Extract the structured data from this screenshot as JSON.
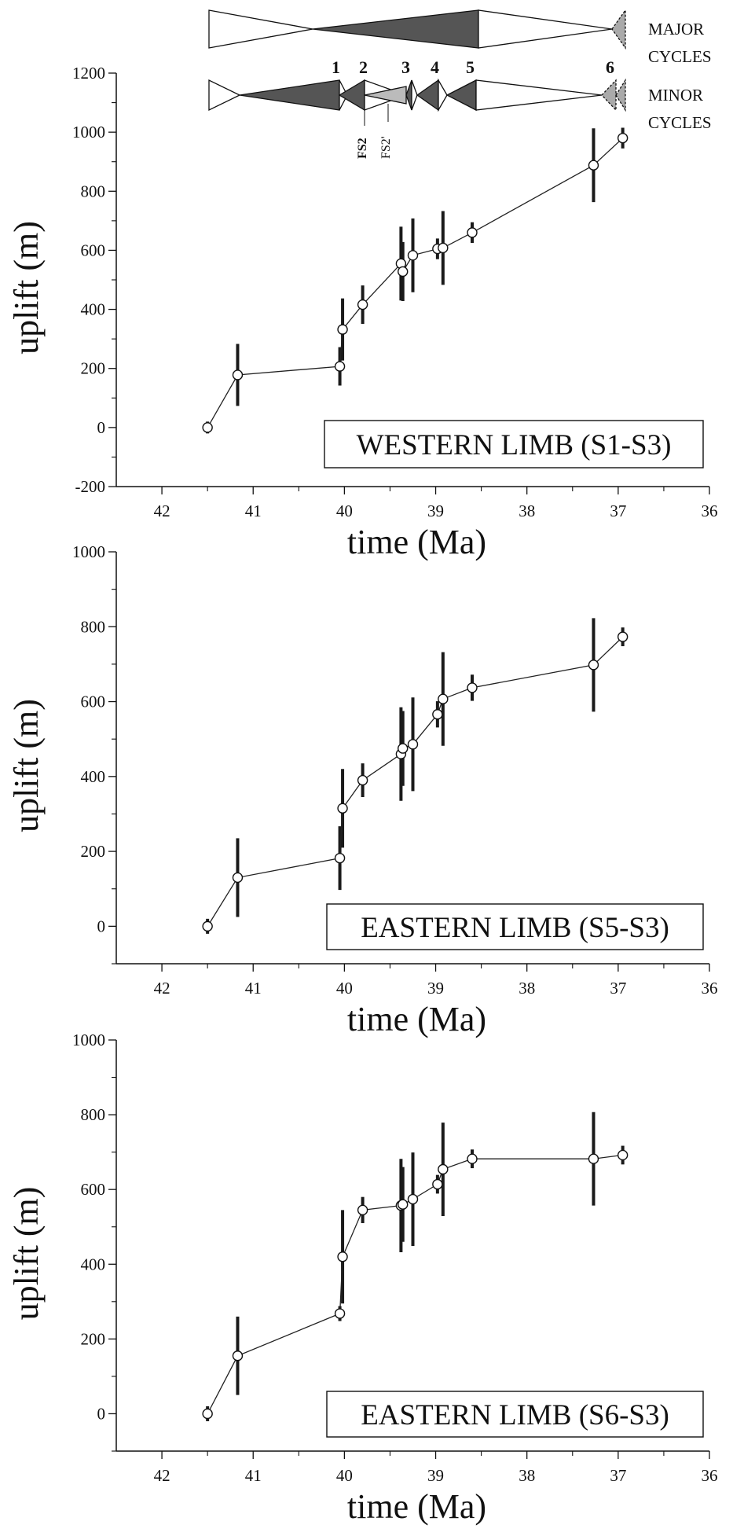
{
  "colors": {
    "cycle_fill": "#555555",
    "cycle_light": "#aaaaaa",
    "cycle_cross": "#bbbbbb",
    "errorbar": "#1a1a1a"
  },
  "cycles": {
    "major_label": [
      "MAJOR",
      "CYCLES"
    ],
    "minor_label": [
      "MINOR",
      "CYCLES"
    ],
    "numbers": [
      "1",
      "2",
      "3",
      "4",
      "5",
      "6"
    ],
    "fs_labels": [
      "FS2",
      "FS2'"
    ]
  },
  "chart_data": [
    {
      "type": "line",
      "box_label": "WESTERN LIMB (S1-S3)",
      "xlabel": "time (Ma)",
      "ylabel": "uplift (m)",
      "xlim": [
        42.5,
        36
      ],
      "ylim": [
        -200,
        1200
      ],
      "xticks": [
        "42",
        "41",
        "40",
        "39",
        "38",
        "37",
        "36"
      ],
      "yticks": [
        "-200",
        "0",
        "200",
        "400",
        "600",
        "800",
        "1000",
        "1200"
      ],
      "x": [
        41.5,
        41.17,
        40.05,
        40.02,
        39.8,
        39.38,
        39.36,
        39.25,
        38.98,
        38.92,
        38.6,
        37.27,
        36.95
      ],
      "y": [
        0,
        178,
        207,
        332,
        416,
        555,
        528,
        583,
        605,
        608,
        660,
        888,
        980
      ],
      "error": [
        20,
        105,
        65,
        105,
        65,
        125,
        100,
        125,
        35,
        125,
        35,
        125,
        35
      ]
    },
    {
      "type": "line",
      "box_label": "EASTERN LIMB (S5-S3)",
      "xlabel": "time (Ma)",
      "ylabel": "uplift (m)",
      "xlim": [
        42.5,
        36
      ],
      "ylim": [
        -100,
        1000
      ],
      "xticks": [
        "42",
        "41",
        "40",
        "39",
        "38",
        "37",
        "36"
      ],
      "yticks": [
        "0",
        "200",
        "400",
        "600",
        "800",
        "1000"
      ],
      "x": [
        41.5,
        41.17,
        40.05,
        40.02,
        39.8,
        39.38,
        39.36,
        39.25,
        38.98,
        38.92,
        38.6,
        37.27,
        36.95
      ],
      "y": [
        0,
        130,
        182,
        315,
        390,
        460,
        475,
        486,
        566,
        607,
        637,
        698,
        773
      ],
      "error": [
        20,
        105,
        85,
        105,
        45,
        125,
        100,
        125,
        35,
        125,
        35,
        125,
        25
      ]
    },
    {
      "type": "line",
      "box_label": "EASTERN LIMB (S6-S3)",
      "xlabel": "time (Ma)",
      "ylabel": "uplift (m)",
      "xlim": [
        42.5,
        36
      ],
      "ylim": [
        -100,
        1000
      ],
      "xticks": [
        "42",
        "41",
        "40",
        "39",
        "38",
        "37",
        "36"
      ],
      "yticks": [
        "0",
        "200",
        "400",
        "600",
        "800",
        "1000"
      ],
      "x": [
        41.5,
        41.17,
        40.05,
        40.02,
        39.8,
        39.38,
        39.36,
        39.25,
        38.98,
        38.92,
        38.6,
        37.27,
        36.95
      ],
      "y": [
        0,
        155,
        268,
        420,
        545,
        557,
        560,
        574,
        614,
        654,
        682,
        682,
        692
      ],
      "error": [
        20,
        105,
        20,
        125,
        35,
        125,
        100,
        125,
        25,
        125,
        25,
        125,
        25
      ]
    }
  ]
}
